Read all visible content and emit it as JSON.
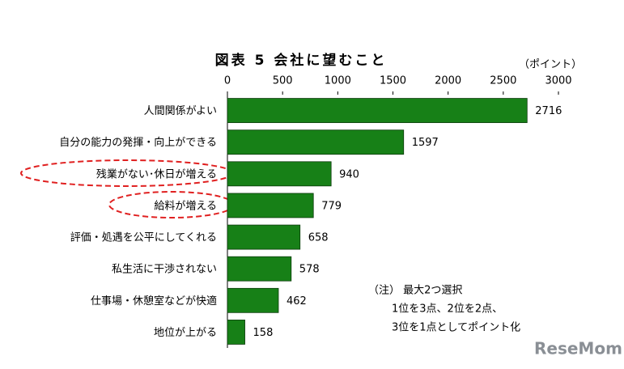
{
  "chart_data": {
    "type": "bar",
    "orientation": "horizontal",
    "title": "図表 5 会社に望むこと",
    "unit_label": "（ポイント）",
    "categories": [
      "人間関係がよい",
      "自分の能力の発揮・向上ができる",
      "残業がない･休日が増える",
      "給料が増える",
      "評価・処遇を公平にしてくれる",
      "私生活に干渉されない",
      "仕事場・休憩室などが快適",
      "地位が上がる"
    ],
    "values": [
      2716,
      1597,
      940,
      779,
      658,
      578,
      462,
      158
    ],
    "color": "#178017",
    "xlim": [
      0,
      3000
    ],
    "xticks": [
      0,
      500,
      1000,
      1500,
      2000,
      2500,
      3000
    ],
    "note": [
      "（注） 最大2つ選択",
      "1位を3点、2位を2点、",
      "3位を1点としてポイント化"
    ],
    "watermark": "ReseMom"
  }
}
